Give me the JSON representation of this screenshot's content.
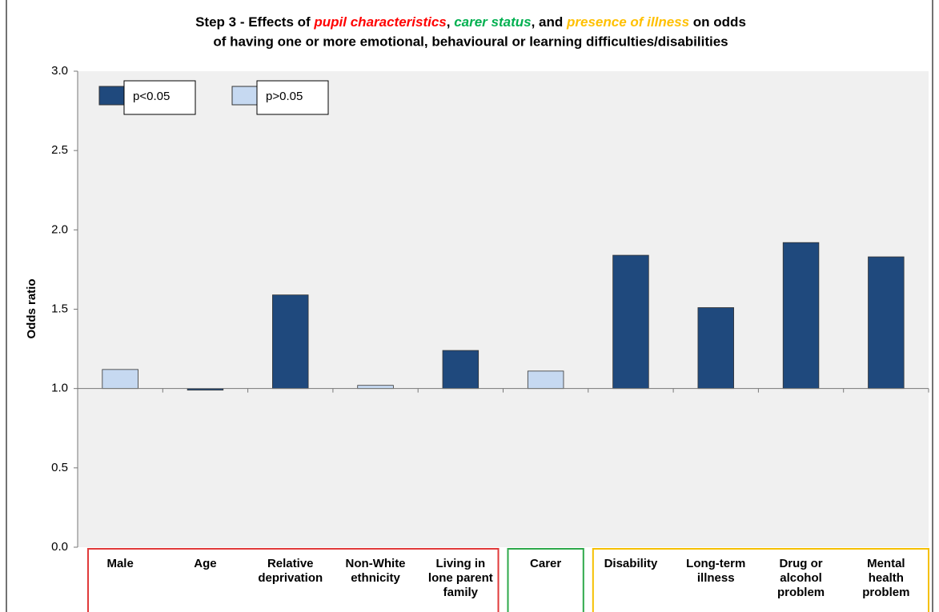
{
  "chart_data": {
    "type": "bar",
    "title": [
      {
        "text": "Step 3 - Effects of ",
        "color": "#000000"
      },
      {
        "text": "pupil characteristics",
        "color": "#ff0000",
        "italic": true
      },
      {
        "text": ", ",
        "color": "#000000"
      },
      {
        "text": "carer status",
        "color": "#00b050",
        "italic": true
      },
      {
        "text": ", and ",
        "color": "#000000"
      },
      {
        "text": "presence of illness",
        "color": "#ffc000",
        "italic": true
      },
      {
        "text": " on odds",
        "color": "#000000"
      }
    ],
    "subtitle": "of having one or more emotional, behavioural or learning difficulties/disabilities",
    "y_label": "Odds ratio",
    "categories": [
      "Male",
      "Age",
      "Relative\ndeprivation",
      "Non-White\nethnicity",
      "Living in\nlone parent\nfamily",
      "Carer",
      "Disability",
      "Long-term\nillness",
      "Drug or\nalcohol\nproblem",
      "Mental\nhealth\nproblem"
    ],
    "values": [
      1.12,
      0.99,
      1.59,
      1.02,
      1.24,
      1.11,
      1.84,
      1.51,
      1.92,
      1.83
    ],
    "colors": [
      "#c6d9f1",
      "#1f497d",
      "#1f497d",
      "#c6d9f1",
      "#1f497d",
      "#c6d9f1",
      "#1f497d",
      "#1f497d",
      "#1f497d",
      "#1f497d"
    ],
    "legend": [
      {
        "label": "p<0.05",
        "color": "#1f497d"
      },
      {
        "label": "p>0.05",
        "color": "#c6d9f1"
      }
    ],
    "groups": [
      {
        "start": 0,
        "end": 4,
        "color": "#e03a3a"
      },
      {
        "start": 5,
        "end": 5,
        "color": "#2ea84a"
      },
      {
        "start": 6,
        "end": 9,
        "color": "#f5c000"
      }
    ],
    "baseline": 1,
    "ylim": [
      0,
      3
    ],
    "yticks": [
      {
        "value": 0,
        "label": "0.0"
      },
      0.5,
      {
        "value": 1,
        "label": "1.0"
      },
      1.5,
      {
        "value": 2,
        "label": "2.0"
      },
      2.5,
      {
        "value": 3,
        "label": "3.0"
      }
    ],
    "grid": false
  }
}
